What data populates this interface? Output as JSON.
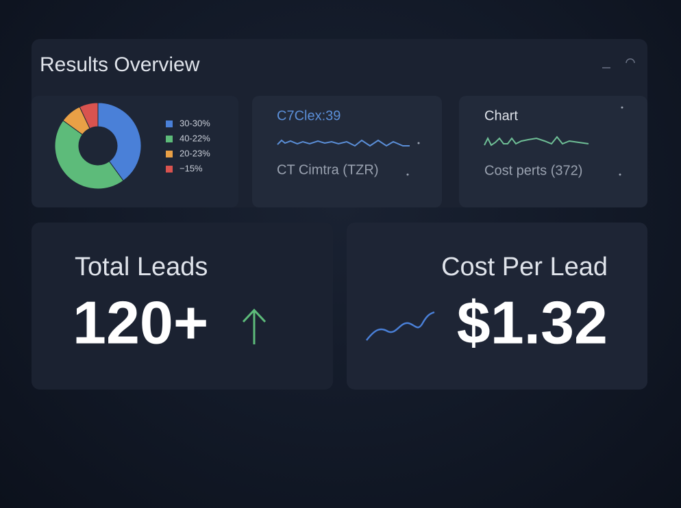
{
  "header": {
    "title": "Results Overview"
  },
  "donut": {
    "type": "pie",
    "series": [
      {
        "name": "30-30%",
        "color": "#4a80d8",
        "value": 40
      },
      {
        "name": "40-22%",
        "color": "#5dbb7a",
        "value": 45
      },
      {
        "name": "20-23%",
        "color": "#e9a046",
        "value": 8
      },
      {
        "name": "−15%",
        "color": "#d9534f",
        "value": 7
      }
    ]
  },
  "cards": [
    {
      "title": "C7Clex:39",
      "subtitle": "CT Cimtra (TZR)"
    },
    {
      "title": "Chart",
      "subtitle": "Cost perts (372)"
    }
  ],
  "kpis": [
    {
      "label": "Total Leads",
      "value": "120+"
    },
    {
      "label": "Cost Per Lead",
      "value": "$1.32"
    }
  ]
}
